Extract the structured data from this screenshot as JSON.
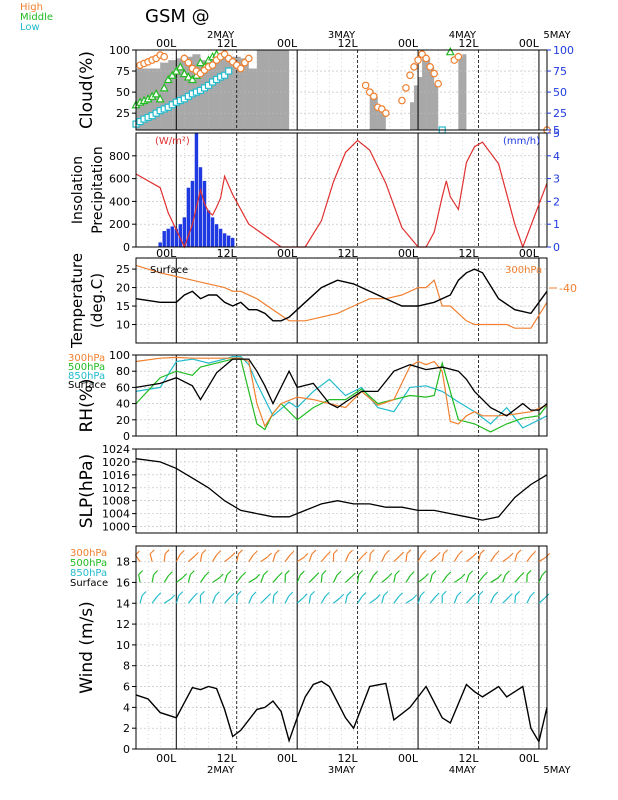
{
  "title": "GSM  @",
  "colors": {
    "high": "#f08030",
    "middle": "#22bb22",
    "low": "#22bbcc",
    "surface": "#000000",
    "insolation": "#e03030",
    "precip": "#1f3ae0",
    "cloud_fill": "#a8a8a8"
  },
  "time_axis": {
    "range_hours": [
      -6,
      96
    ],
    "top_ticks": [
      "00L",
      "12L",
      "00L",
      "12L",
      "00L",
      "12L",
      "00L"
    ],
    "tick_hours": [
      0,
      15,
      30,
      45,
      60,
      75,
      90
    ],
    "dates": [
      "2MAY",
      "3MAY",
      "4MAY",
      "5MAY"
    ],
    "date_hours": [
      15,
      45,
      75,
      105
    ],
    "day_lines": [
      4,
      34,
      64,
      94
    ],
    "noon_lines": [
      19,
      49,
      79
    ]
  },
  "chart_data": [
    {
      "id": "cloud",
      "type": "area+scatter",
      "ylabel": "Cloud(%)",
      "ylim": [
        5,
        100
      ],
      "yticks_left": [
        25,
        50,
        75,
        100
      ],
      "yticks_right": [
        5,
        25,
        50,
        75,
        100
      ],
      "legend": [
        "High",
        "Middle",
        "Low"
      ],
      "total_cloud": {
        "x": [
          -6,
          0,
          2,
          4,
          6,
          8,
          10,
          12,
          14,
          16,
          18,
          20,
          22,
          24,
          26,
          28,
          30,
          32,
          34,
          36,
          38,
          40,
          42,
          44,
          46,
          48,
          50,
          51,
          52,
          53,
          54,
          55,
          56,
          57,
          58,
          59,
          60,
          61,
          62,
          63,
          64,
          65,
          66,
          67,
          68,
          69,
          70,
          71,
          72,
          73,
          74,
          75,
          76,
          78,
          80,
          82,
          84,
          86,
          88,
          90,
          92,
          94,
          96
        ],
        "y": [
          78,
          85,
          88,
          90,
          92,
          95,
          88,
          90,
          92,
          92,
          92,
          90,
          78,
          100,
          100,
          100,
          100,
          5,
          5,
          5,
          5,
          5,
          5,
          5,
          5,
          5,
          5,
          5,
          52,
          45,
          32,
          30,
          5,
          5,
          5,
          5,
          5,
          5,
          38,
          58,
          68,
          92,
          90,
          80,
          60,
          5,
          5,
          5,
          5,
          5,
          92,
          95,
          5,
          5,
          5,
          5,
          5,
          5,
          5,
          5,
          5,
          5,
          5
        ]
      },
      "high": {
        "x": [
          -5,
          -4,
          -3,
          -2,
          -1,
          0,
          1,
          6,
          7,
          8,
          9,
          10,
          11,
          12,
          13,
          14,
          15,
          16,
          17,
          18,
          19,
          20,
          21,
          22,
          51,
          52,
          53,
          54,
          55,
          56,
          60,
          61,
          62,
          63,
          64,
          65,
          66,
          67,
          68,
          69,
          73,
          74,
          96
        ],
        "y": [
          82,
          84,
          86,
          88,
          90,
          94,
          92,
          90,
          85,
          78,
          75,
          72,
          76,
          80,
          82,
          88,
          92,
          95,
          90,
          86,
          82,
          78,
          85,
          90,
          58,
          50,
          45,
          32,
          30,
          25,
          40,
          55,
          70,
          80,
          88,
          95,
          90,
          80,
          72,
          60,
          88,
          92,
          5
        ]
      },
      "middle": {
        "x": [
          -6,
          -5,
          -4,
          -3,
          -2,
          -1,
          0,
          1,
          2,
          3,
          4,
          5,
          6,
          7,
          8,
          9,
          10,
          11,
          12,
          13,
          14,
          72
        ],
        "y": [
          35,
          38,
          40,
          42,
          45,
          48,
          42,
          55,
          65,
          70,
          75,
          80,
          72,
          68,
          65,
          70,
          85,
          80,
          88,
          92,
          95,
          98
        ]
      },
      "low": {
        "x": [
          -6,
          -5,
          -4,
          -3,
          -2,
          -1,
          0,
          1,
          2,
          3,
          4,
          5,
          6,
          7,
          8,
          9,
          10,
          11,
          12,
          13,
          14,
          15,
          16,
          17,
          70
        ],
        "y": [
          12,
          15,
          18,
          20,
          22,
          25,
          28,
          30,
          32,
          35,
          38,
          40,
          42,
          45,
          48,
          50,
          52,
          55,
          58,
          62,
          65,
          68,
          70,
          75,
          5
        ]
      }
    },
    {
      "id": "insolation",
      "type": "line+bar",
      "ylabel": "Insolation\nPrecipitation",
      "left_unit": "(W/m²)",
      "right_unit": "(mm/h)",
      "ylim_left": [
        0,
        1000
      ],
      "ylim_right": [
        0,
        5
      ],
      "yticks_left": [
        0,
        200,
        400,
        600,
        800
      ],
      "yticks_right": [
        0,
        1,
        2,
        3,
        4,
        5
      ],
      "insolation": {
        "x": [
          -6,
          0,
          2,
          6,
          8,
          10,
          11,
          12,
          13,
          14,
          15,
          16,
          18,
          22,
          30,
          36,
          40,
          43,
          46,
          49,
          52,
          56,
          60,
          64,
          66,
          68,
          70,
          71,
          72,
          74,
          76,
          78,
          80,
          84,
          88,
          90,
          96
        ],
        "y": [
          640,
          520,
          300,
          0,
          200,
          500,
          380,
          310,
          280,
          350,
          430,
          620,
          460,
          200,
          0,
          0,
          230,
          570,
          830,
          935,
          850,
          560,
          170,
          0,
          0,
          130,
          440,
          580,
          440,
          330,
          740,
          880,
          920,
          730,
          200,
          0,
          560
        ]
      },
      "precip": {
        "x": [
          0,
          1,
          2,
          3,
          4,
          5,
          6,
          7,
          8,
          9,
          10,
          11,
          12,
          13,
          14,
          15,
          16,
          17,
          18
        ],
        "y": [
          0.2,
          0.7,
          0.8,
          0.9,
          0.8,
          1.0,
          1.3,
          2.6,
          2.9,
          5.0,
          3.5,
          2.9,
          1.6,
          1.3,
          1.0,
          0.8,
          0.6,
          0.5,
          0.4
        ]
      }
    },
    {
      "id": "temperature",
      "type": "line",
      "ylabel": "Temperature\n(deg.C)",
      "ylim": [
        5,
        28
      ],
      "yticks": [
        10,
        15,
        20,
        25
      ],
      "right_label": "300hPa",
      "right_tick": "-40",
      "left_label": "Surface",
      "surface": {
        "x": [
          -6,
          0,
          2,
          4,
          6,
          8,
          10,
          12,
          14,
          16,
          18,
          20,
          22,
          24,
          26,
          28,
          30,
          32,
          34,
          36,
          40,
          44,
          48,
          52,
          56,
          60,
          64,
          68,
          72,
          74,
          76,
          78,
          80,
          84,
          88,
          92,
          96
        ],
        "y": [
          17,
          16,
          16,
          16,
          18,
          19,
          17,
          18,
          18,
          16,
          15,
          16,
          14,
          14,
          13,
          11,
          11,
          12,
          14,
          16,
          20,
          22,
          21,
          19,
          17,
          15,
          15,
          16,
          18,
          22,
          24,
          25,
          24,
          17,
          14,
          13,
          19
        ]
      },
      "upper": {
        "x": [
          -6,
          0,
          4,
          8,
          12,
          16,
          18,
          20,
          24,
          28,
          32,
          36,
          40,
          44,
          48,
          52,
          56,
          60,
          64,
          66,
          68,
          70,
          72,
          74,
          76,
          78,
          82,
          86,
          88,
          92,
          96
        ],
        "y": [
          26,
          24,
          23,
          22,
          21,
          20,
          19,
          19,
          17,
          14,
          11,
          11,
          12,
          13,
          15,
          17,
          17,
          18,
          20,
          20,
          22,
          15,
          15,
          13,
          11,
          10,
          10,
          10,
          9,
          9,
          16
        ]
      }
    },
    {
      "id": "rh",
      "type": "line",
      "ylabel": "RH(%)",
      "ylim": [
        0,
        100
      ],
      "yticks": [
        0,
        20,
        40,
        60,
        80,
        100
      ],
      "legend": [
        "300hPa",
        "500hPa",
        "850hPa",
        "Surface"
      ],
      "s300": {
        "x": [
          -6,
          0,
          4,
          8,
          12,
          16,
          18,
          20,
          22,
          24,
          26,
          28,
          30,
          34,
          38,
          42,
          46,
          50,
          54,
          58,
          62,
          64,
          66,
          68,
          70,
          72,
          74,
          76,
          78,
          80,
          84,
          88,
          92,
          96
        ],
        "y": [
          92,
          96,
          97,
          96,
          96,
          96,
          96,
          96,
          92,
          40,
          12,
          28,
          40,
          48,
          45,
          40,
          35,
          55,
          38,
          45,
          86,
          92,
          88,
          92,
          80,
          18,
          15,
          25,
          30,
          25,
          25,
          27,
          30,
          38
        ]
      },
      "s500": {
        "x": [
          -6,
          0,
          4,
          8,
          10,
          14,
          18,
          20,
          22,
          24,
          26,
          28,
          30,
          34,
          38,
          42,
          46,
          50,
          54,
          58,
          62,
          66,
          68,
          70,
          72,
          74,
          78,
          82,
          86,
          90,
          94,
          96
        ],
        "y": [
          40,
          72,
          80,
          75,
          85,
          90,
          95,
          95,
          55,
          15,
          8,
          28,
          40,
          20,
          35,
          45,
          45,
          58,
          40,
          45,
          50,
          48,
          50,
          90,
          55,
          20,
          15,
          5,
          15,
          22,
          25,
          38
        ]
      },
      "s850": {
        "x": [
          -6,
          0,
          4,
          8,
          12,
          16,
          18,
          20,
          22,
          24,
          28,
          32,
          34,
          38,
          42,
          46,
          50,
          54,
          58,
          62,
          66,
          70,
          74,
          78,
          82,
          86,
          90,
          96
        ],
        "y": [
          55,
          60,
          92,
          95,
          90,
          95,
          98,
          98,
          88,
          65,
          25,
          42,
          35,
          55,
          70,
          50,
          60,
          35,
          30,
          60,
          62,
          55,
          42,
          30,
          15,
          35,
          10,
          25
        ]
      },
      "surface": {
        "x": [
          -6,
          0,
          4,
          8,
          10,
          14,
          18,
          22,
          24,
          26,
          28,
          32,
          34,
          38,
          42,
          44,
          46,
          50,
          54,
          58,
          62,
          66,
          70,
          74,
          76,
          78,
          82,
          86,
          90,
          92,
          94,
          96
        ],
        "y": [
          60,
          65,
          72,
          62,
          45,
          78,
          95,
          95,
          80,
          62,
          40,
          80,
          60,
          65,
          40,
          35,
          42,
          55,
          55,
          80,
          88,
          82,
          85,
          80,
          70,
          55,
          35,
          25,
          40,
          32,
          32,
          40
        ]
      }
    },
    {
      "id": "slp",
      "type": "line",
      "ylabel": "SLP(hPa)",
      "ylim": [
        998,
        1024
      ],
      "yticks": [
        1000,
        1004,
        1008,
        1012,
        1016,
        1020,
        1024
      ],
      "surface": {
        "x": [
          -6,
          0,
          4,
          8,
          12,
          16,
          20,
          24,
          28,
          32,
          36,
          40,
          44,
          48,
          52,
          56,
          60,
          64,
          68,
          72,
          76,
          80,
          84,
          88,
          92,
          96
        ],
        "y": [
          1021,
          1020,
          1018,
          1015,
          1012,
          1008,
          1005,
          1004,
          1003,
          1003,
          1005,
          1007,
          1008,
          1007,
          1007,
          1006,
          1006,
          1005,
          1005,
          1004,
          1003,
          1002,
          1003,
          1009,
          1013,
          1016
        ]
      }
    },
    {
      "id": "wind",
      "type": "line+barbs",
      "ylabel": "Wind (m/s)",
      "ylim": [
        0,
        19.5
      ],
      "yticks": [
        0,
        2,
        4,
        6,
        8,
        10,
        12,
        14,
        16,
        18
      ],
      "legend": [
        "300hPa",
        "500hPa",
        "850hPa",
        "Surface"
      ],
      "surface": {
        "x": [
          -6,
          -3,
          0,
          4,
          8,
          10,
          12,
          14,
          16,
          18,
          20,
          24,
          26,
          28,
          30,
          32,
          34,
          36,
          38,
          40,
          42,
          44,
          46,
          48,
          52,
          56,
          58,
          62,
          66,
          70,
          72,
          76,
          78,
          80,
          84,
          86,
          88,
          90,
          92,
          94,
          96
        ],
        "y": [
          5.2,
          4.8,
          3.5,
          3.0,
          5.9,
          5.7,
          6.0,
          5.8,
          3.8,
          1.2,
          1.8,
          3.8,
          4.0,
          4.6,
          3.6,
          0.8,
          3.0,
          5.0,
          6.2,
          6.5,
          6.0,
          4.5,
          3.0,
          2.0,
          6.0,
          6.3,
          2.8,
          4.0,
          6.0,
          3.0,
          2.5,
          6.2,
          5.5,
          5.0,
          6.0,
          5.0,
          5.5,
          6.0,
          2.0,
          0.7,
          4.0
        ]
      },
      "barb_levels": [
        18,
        16,
        14,
        12
      ]
    }
  ]
}
